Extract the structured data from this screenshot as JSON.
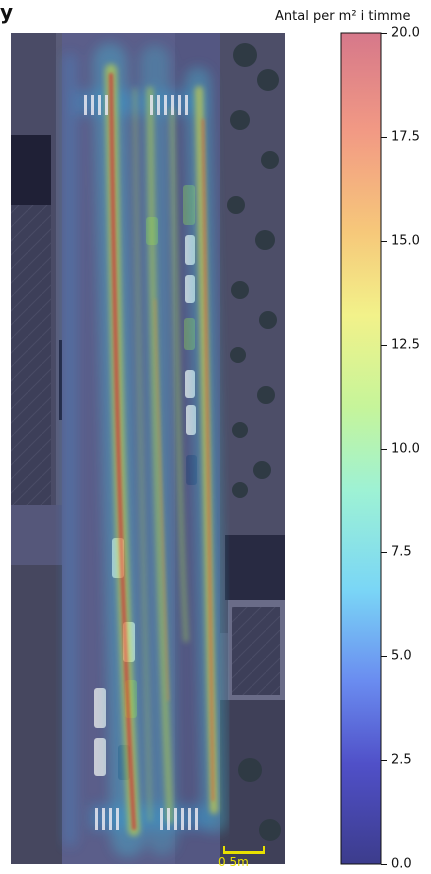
{
  "title_fragment": "y",
  "colorbar": {
    "label": "Antal per m² i timme",
    "min": 0.0,
    "max": 20.0,
    "ticks": [
      "0.0",
      "2.5",
      "5.0",
      "7.5",
      "10.0",
      "12.5",
      "15.0",
      "17.5",
      "20.0"
    ],
    "tick_values": [
      0.0,
      2.5,
      5.0,
      7.5,
      10.0,
      12.5,
      15.0,
      17.5,
      20.0
    ],
    "colormap": "jet",
    "alpha": "semi-transparent"
  },
  "scalebar": {
    "label": "0     5m"
  },
  "chart_data": {
    "type": "heatmap",
    "title": "",
    "xlabel": "",
    "ylabel": "",
    "colorbar_label": "Antal per m² i timme",
    "vmin": 0,
    "vmax": 20,
    "background": "aerial photo of street",
    "hotspots": [
      {
        "name": "left lane track",
        "value": 18
      },
      {
        "name": "center-left lane track",
        "value": 11
      },
      {
        "name": "center lane track",
        "value": 9
      },
      {
        "name": "right lane track",
        "value": 12
      },
      {
        "name": "crosswalk top",
        "value": 6
      },
      {
        "name": "crosswalk bottom",
        "value": 7
      },
      {
        "name": "street background",
        "value": 2
      }
    ]
  }
}
